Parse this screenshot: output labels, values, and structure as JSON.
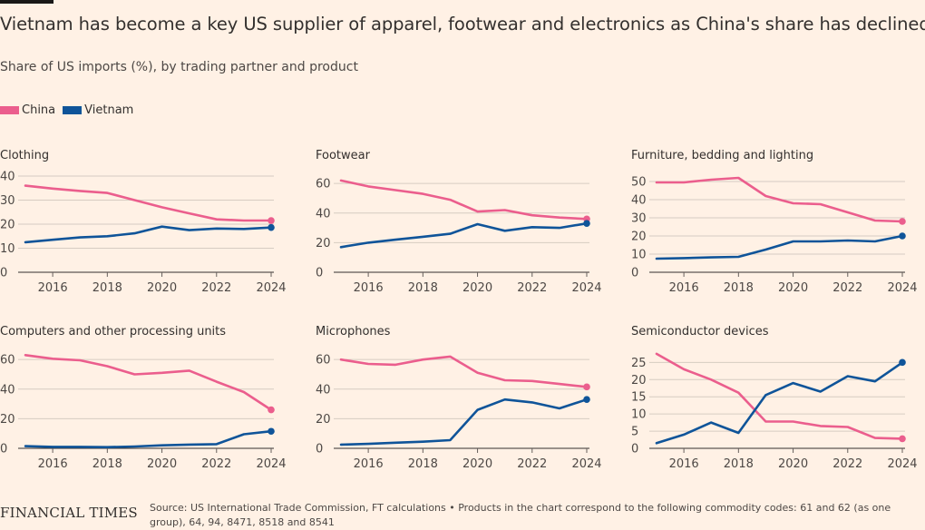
{
  "title": "Vietnam has become a key US supplier of apparel, footwear and electronics as China's share has declined",
  "subtitle": "Share of US imports (%), by trading partner and product",
  "legend": [
    {
      "name": "China",
      "color": "#eb5e8d"
    },
    {
      "name": "Vietnam",
      "color": "#0f5499"
    }
  ],
  "source": "Source: US International Trade Commission, FT calculations • Products in the chart correspond to the following commodity codes: 61 and 62 (as one group), 64, 94, 8471, 8518 and 8541",
  "logo": "FINANCIAL TIMES",
  "chart_data": [
    {
      "type": "line",
      "title": "Clothing",
      "x": [
        2015,
        2016,
        2017,
        2018,
        2019,
        2020,
        2021,
        2022,
        2023,
        2024
      ],
      "xticks": [
        2016,
        2018,
        2020,
        2022,
        2024
      ],
      "yticks": [
        0,
        10,
        20,
        30,
        40
      ],
      "ylim": [
        0,
        40
      ],
      "series": [
        {
          "name": "China",
          "values": [
            36,
            34.8,
            33.8,
            33,
            30,
            27,
            24.5,
            22,
            21.5,
            21.5
          ]
        },
        {
          "name": "Vietnam",
          "values": [
            12.5,
            13.5,
            14.5,
            15,
            16.2,
            19,
            17.5,
            18.2,
            18,
            18.6
          ]
        }
      ]
    },
    {
      "type": "line",
      "title": "Footwear",
      "x": [
        2015,
        2016,
        2017,
        2018,
        2019,
        2020,
        2021,
        2022,
        2023,
        2024
      ],
      "xticks": [
        2016,
        2018,
        2020,
        2022,
        2024
      ],
      "yticks": [
        0,
        20,
        40,
        60
      ],
      "ylim": [
        0,
        65
      ],
      "series": [
        {
          "name": "China",
          "values": [
            62,
            58,
            55.5,
            53,
            49,
            41,
            42,
            38.5,
            37,
            36
          ]
        },
        {
          "name": "Vietnam",
          "values": [
            17,
            20,
            22,
            24,
            26,
            32.5,
            28,
            30.5,
            30,
            33
          ]
        }
      ]
    },
    {
      "type": "line",
      "title": "Furniture, bedding and lighting",
      "x": [
        2015,
        2016,
        2017,
        2018,
        2019,
        2020,
        2021,
        2022,
        2023,
        2024
      ],
      "xticks": [
        2016,
        2018,
        2020,
        2022,
        2024
      ],
      "yticks": [
        0,
        10,
        20,
        30,
        40,
        50
      ],
      "ylim": [
        0,
        53
      ],
      "series": [
        {
          "name": "China",
          "values": [
            49.5,
            49.5,
            51,
            52,
            42,
            38,
            37.5,
            33,
            28.5,
            28
          ]
        },
        {
          "name": "Vietnam",
          "values": [
            7.5,
            7.8,
            8.2,
            8.5,
            12.5,
            17,
            17,
            17.5,
            17,
            20
          ]
        }
      ]
    },
    {
      "type": "line",
      "title": "Computers and other processing units",
      "x": [
        2015,
        2016,
        2017,
        2018,
        2019,
        2020,
        2021,
        2022,
        2023,
        2024
      ],
      "xticks": [
        2016,
        2018,
        2020,
        2022,
        2024
      ],
      "yticks": [
        0,
        20,
        40,
        60
      ],
      "ylim": [
        0,
        65
      ],
      "series": [
        {
          "name": "China",
          "values": [
            63,
            60.5,
            59.5,
            55.5,
            50,
            51,
            52.5,
            45,
            38,
            26
          ]
        },
        {
          "name": "Vietnam",
          "values": [
            1.5,
            1,
            1,
            0.8,
            1.2,
            2,
            2.5,
            2.8,
            9.5,
            11.5
          ]
        }
      ]
    },
    {
      "type": "line",
      "title": "Microphones",
      "x": [
        2015,
        2016,
        2017,
        2018,
        2019,
        2020,
        2021,
        2022,
        2023,
        2024
      ],
      "xticks": [
        2016,
        2018,
        2020,
        2022,
        2024
      ],
      "yticks": [
        0,
        20,
        40,
        60
      ],
      "ylim": [
        0,
        65
      ],
      "series": [
        {
          "name": "China",
          "values": [
            60,
            57,
            56.5,
            60,
            62,
            51,
            46,
            45.5,
            43.5,
            41.5
          ]
        },
        {
          "name": "Vietnam",
          "values": [
            2.5,
            3,
            3.8,
            4.5,
            5.5,
            26,
            33,
            31,
            27,
            33
          ]
        }
      ]
    },
    {
      "type": "line",
      "title": "Semiconductor devices",
      "x": [
        2015,
        2016,
        2017,
        2018,
        2019,
        2020,
        2021,
        2022,
        2023,
        2024
      ],
      "xticks": [
        2016,
        2018,
        2020,
        2022,
        2024
      ],
      "yticks": [
        0,
        5,
        10,
        15,
        20,
        25
      ],
      "ylim": [
        0,
        28
      ],
      "series": [
        {
          "name": "China",
          "values": [
            27.5,
            23,
            20,
            16.2,
            7.8,
            7.8,
            6.5,
            6.2,
            3,
            2.8
          ]
        },
        {
          "name": "Vietnam",
          "values": [
            1.5,
            4,
            7.5,
            4.5,
            15.5,
            19,
            16.5,
            21,
            19.5,
            25
          ]
        }
      ]
    }
  ]
}
